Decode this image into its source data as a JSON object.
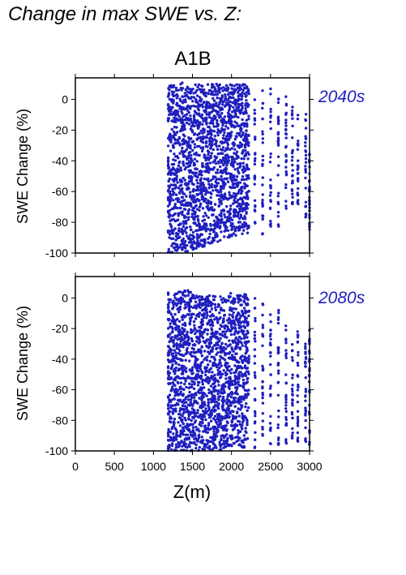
{
  "page": {
    "title": "Change in max SWE vs. Z:"
  },
  "colors": {
    "points": "#1f1fbf",
    "label_accent": "#1f1fbf",
    "axes": "#000000"
  },
  "chart_data": [
    {
      "type": "scatter",
      "title": "A1B",
      "panel_label": "2040s",
      "xlabel": "",
      "ylabel": "SWE Change (%)",
      "xlim": [
        0,
        3000
      ],
      "ylim": [
        -100,
        14
      ],
      "yticks": [
        "0",
        "-20",
        "-40",
        "-60",
        "-80",
        "-100"
      ],
      "ytick_values": [
        0,
        -20,
        -40,
        -60,
        -80,
        -100
      ],
      "xticks_shown": false,
      "series": [
        {
          "elevation_bands": [
            {
              "x": 1200,
              "ymin": -100,
              "ymax": 9
            },
            {
              "x": 1250,
              "ymin": -100,
              "ymax": 10
            },
            {
              "x": 1300,
              "ymin": -99,
              "ymax": 10
            },
            {
              "x": 1350,
              "ymin": -99,
              "ymax": 11
            },
            {
              "x": 1400,
              "ymin": -99,
              "ymax": 11
            },
            {
              "x": 1450,
              "ymin": -99,
              "ymax": 11
            },
            {
              "x": 1500,
              "ymin": -98,
              "ymax": 10
            },
            {
              "x": 1550,
              "ymin": -97,
              "ymax": 10
            },
            {
              "x": 1600,
              "ymin": -96,
              "ymax": 10
            },
            {
              "x": 1650,
              "ymin": -96,
              "ymax": 10
            },
            {
              "x": 1700,
              "ymin": -95,
              "ymax": 10
            },
            {
              "x": 1750,
              "ymin": -94,
              "ymax": 10
            },
            {
              "x": 1800,
              "ymin": -93,
              "ymax": 10
            },
            {
              "x": 1850,
              "ymin": -92,
              "ymax": 10
            },
            {
              "x": 1900,
              "ymin": -91,
              "ymax": 10
            },
            {
              "x": 1950,
              "ymin": -90,
              "ymax": 10
            },
            {
              "x": 2000,
              "ymin": -90,
              "ymax": 10
            },
            {
              "x": 2050,
              "ymin": -89,
              "ymax": 10
            },
            {
              "x": 2100,
              "ymin": -88,
              "ymax": 10
            },
            {
              "x": 2150,
              "ymin": -88,
              "ymax": 10
            },
            {
              "x": 2200,
              "ymin": -87,
              "ymax": 10
            },
            {
              "x": 2300,
              "ymin": -90,
              "ymax": 5
            },
            {
              "x": 2400,
              "ymin": -88,
              "ymax": 6
            },
            {
              "x": 2500,
              "ymin": -85,
              "ymax": 8
            },
            {
              "x": 2600,
              "ymin": -88,
              "ymax": 5
            },
            {
              "x": 2700,
              "ymin": -72,
              "ymax": 4
            },
            {
              "x": 2780,
              "ymin": -70,
              "ymax": -5
            },
            {
              "x": 2850,
              "ymin": -75,
              "ymax": -10
            },
            {
              "x": 2950,
              "ymin": -80,
              "ymax": -5
            },
            {
              "x": 3000,
              "ymin": -85,
              "ymax": -35
            }
          ]
        }
      ]
    },
    {
      "type": "scatter",
      "title": "",
      "panel_label": "2080s",
      "xlabel": "Z(m)",
      "ylabel": "SWE Change (%)",
      "xlim": [
        0,
        3000
      ],
      "ylim": [
        -100,
        14
      ],
      "yticks": [
        "0",
        "-20",
        "-40",
        "-60",
        "-80",
        "-100"
      ],
      "ytick_values": [
        0,
        -20,
        -40,
        -60,
        -80,
        -100
      ],
      "xticks": [
        "0",
        "500",
        "1000",
        "1500",
        "2000",
        "2500",
        "3000"
      ],
      "xtick_values": [
        0,
        500,
        1000,
        1500,
        2000,
        2500,
        3000
      ],
      "series": [
        {
          "elevation_bands": [
            {
              "x": 1200,
              "ymin": -100,
              "ymax": 5
            },
            {
              "x": 1250,
              "ymin": -100,
              "ymax": 3
            },
            {
              "x": 1300,
              "ymin": -100,
              "ymax": 3
            },
            {
              "x": 1350,
              "ymin": -100,
              "ymax": 4
            },
            {
              "x": 1400,
              "ymin": -100,
              "ymax": 5
            },
            {
              "x": 1450,
              "ymin": -100,
              "ymax": 5
            },
            {
              "x": 1500,
              "ymin": -100,
              "ymax": 4
            },
            {
              "x": 1550,
              "ymin": -100,
              "ymax": 2
            },
            {
              "x": 1600,
              "ymin": -100,
              "ymax": 2
            },
            {
              "x": 1650,
              "ymin": -100,
              "ymax": 2
            },
            {
              "x": 1700,
              "ymin": -100,
              "ymax": 2
            },
            {
              "x": 1750,
              "ymin": -100,
              "ymax": 2
            },
            {
              "x": 1800,
              "ymin": -100,
              "ymax": 2
            },
            {
              "x": 1850,
              "ymin": -100,
              "ymax": 2
            },
            {
              "x": 1900,
              "ymin": -99,
              "ymax": 2
            },
            {
              "x": 1950,
              "ymin": -99,
              "ymax": 2
            },
            {
              "x": 2000,
              "ymin": -98,
              "ymax": 3
            },
            {
              "x": 2050,
              "ymin": -98,
              "ymax": 3
            },
            {
              "x": 2100,
              "ymin": -98,
              "ymax": 3
            },
            {
              "x": 2150,
              "ymin": -98,
              "ymax": 3
            },
            {
              "x": 2200,
              "ymin": -98,
              "ymax": 2
            },
            {
              "x": 2300,
              "ymin": -99,
              "ymax": 0
            },
            {
              "x": 2400,
              "ymin": -98,
              "ymax": -2
            },
            {
              "x": 2500,
              "ymin": -98,
              "ymax": -10
            },
            {
              "x": 2600,
              "ymin": -97,
              "ymax": -8
            },
            {
              "x": 2700,
              "ymin": -95,
              "ymax": -15
            },
            {
              "x": 2780,
              "ymin": -92,
              "ymax": -30
            },
            {
              "x": 2850,
              "ymin": -95,
              "ymax": -20
            },
            {
              "x": 2950,
              "ymin": -95,
              "ymax": -25
            },
            {
              "x": 3000,
              "ymin": -98,
              "ymax": -20
            }
          ]
        }
      ]
    }
  ]
}
